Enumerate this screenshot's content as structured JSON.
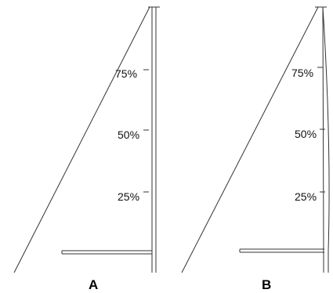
{
  "panels": [
    {
      "label": "A",
      "ticks": [
        "75%",
        "50%",
        "25%"
      ]
    },
    {
      "label": "B",
      "ticks": [
        "75%",
        "50%",
        "25%"
      ]
    }
  ],
  "colors": {
    "line": "#333333",
    "text": "#111111",
    "background": "#ffffff"
  }
}
